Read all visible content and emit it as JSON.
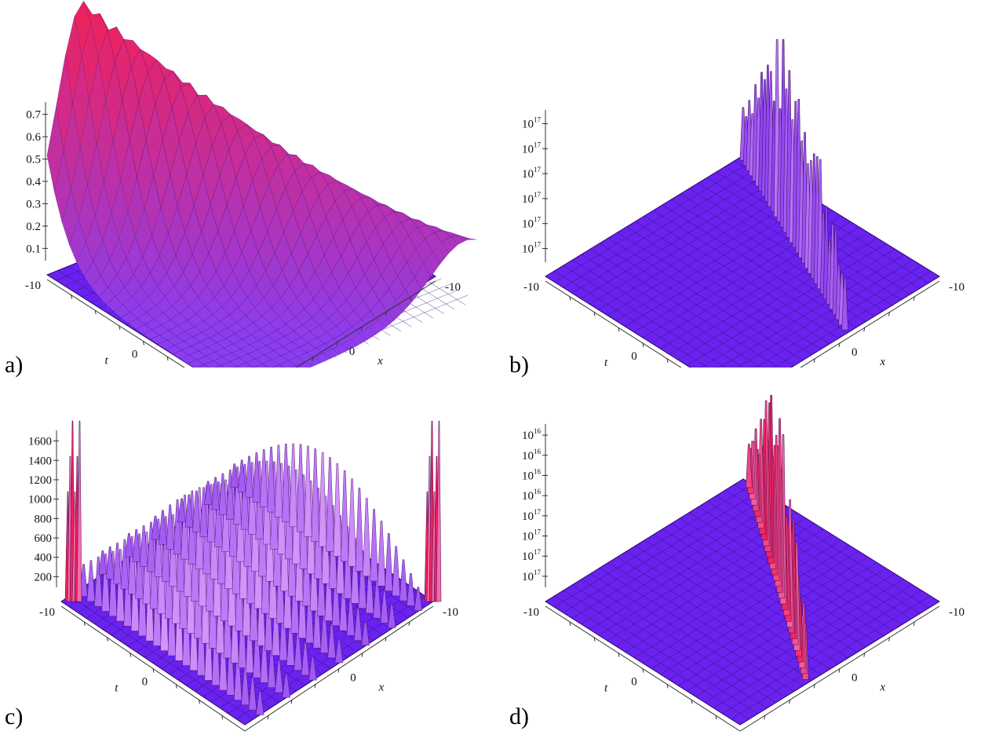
{
  "colors": {
    "floor": "#6a22ee",
    "floor_line": "#2a0670",
    "ridge_low": "#8a3ef0",
    "ridge_high": "#f0225a",
    "highlight": "#f3b7ff"
  },
  "chart_data": [
    {
      "type": "surface3d",
      "panel_label": "a)",
      "zticks": [
        "0.1",
        "0.2",
        "0.3",
        "0.4",
        "0.5",
        "0.6",
        "0.7"
      ],
      "zlim": [
        0,
        0.78
      ],
      "x_ticks": [
        "-10",
        "0"
      ],
      "t_ticks": [
        "-10",
        "0"
      ],
      "xlabel": "x",
      "tlabel": "t",
      "shape": "single smooth soliton ridge, peak about 0.78"
    },
    {
      "type": "surface3d",
      "panel_label": "b)",
      "zticks": [
        {
          "base": "10",
          "exp": "17"
        },
        {
          "base": "10",
          "exp": "17"
        },
        {
          "base": "10",
          "exp": "17"
        },
        {
          "base": "10",
          "exp": "17"
        },
        {
          "base": "10",
          "exp": "17"
        },
        {
          "base": "10",
          "exp": "17"
        }
      ],
      "x_ticks": [
        "-10",
        "0"
      ],
      "t_ticks": [
        "-10",
        "0"
      ],
      "xlabel": "x",
      "tlabel": "t",
      "shape": "narrow line of spikes along one diagonal"
    },
    {
      "type": "surface3d",
      "panel_label": "c)",
      "zticks": [
        "200",
        "400",
        "600",
        "800",
        "1000",
        "1200",
        "1400",
        "1600"
      ],
      "zlim": [
        0,
        1700
      ],
      "x_ticks": [
        "-10",
        "0"
      ],
      "t_ticks": [
        "-10",
        "0"
      ],
      "xlabel": "x",
      "tlabel": "t",
      "shape": "periodic parallel ridges with tall spikes at the edges"
    },
    {
      "type": "surface3d",
      "panel_label": "d)",
      "zticks": [
        {
          "base": "10",
          "exp": "17"
        },
        {
          "base": "10",
          "exp": "17"
        },
        {
          "base": "10",
          "exp": "17"
        },
        {
          "base": "10",
          "exp": "17"
        },
        {
          "base": "10",
          "exp": "16"
        },
        {
          "base": "10",
          "exp": "16"
        },
        {
          "base": "10",
          "exp": "16"
        },
        {
          "base": "10",
          "exp": "16"
        }
      ],
      "x_ticks": [
        "-10",
        "0"
      ],
      "t_ticks": [
        "-10",
        "0"
      ],
      "xlabel": "x",
      "tlabel": "t",
      "shape": "narrow line of spikes along one diagonal"
    }
  ]
}
